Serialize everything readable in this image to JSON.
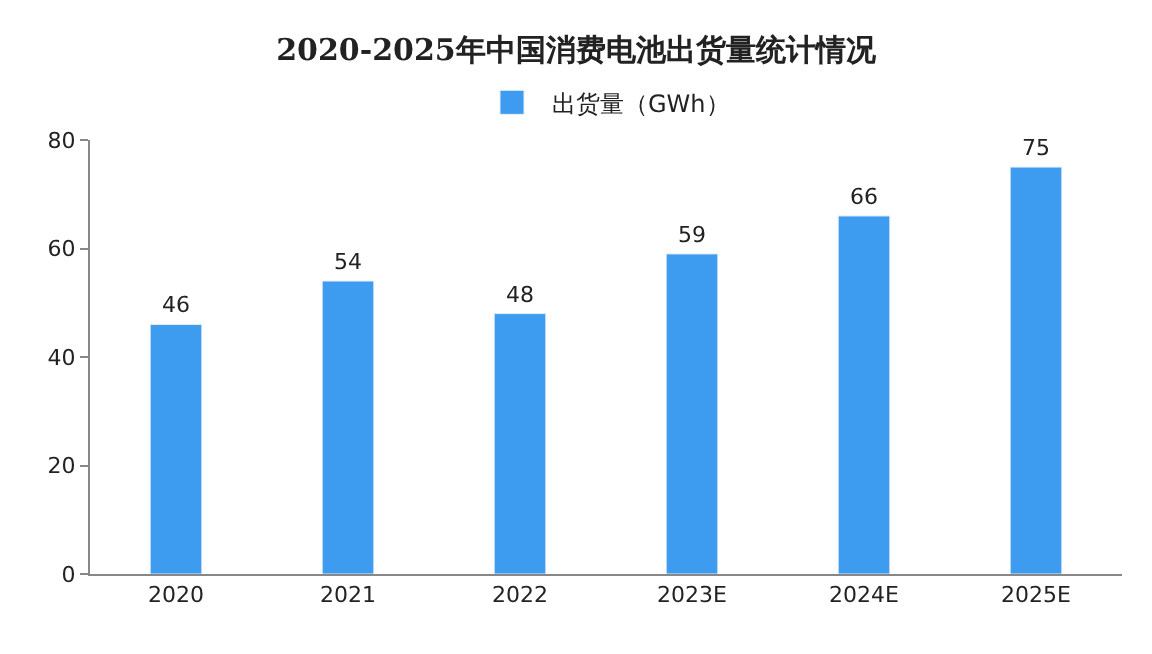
{
  "chart_data": {
    "type": "bar",
    "title": "2020-2025年中国消费电池出货量统计情况",
    "categories": [
      "2020",
      "2021",
      "2022",
      "2023E",
      "2024E",
      "2025E"
    ],
    "series": [
      {
        "name": "出货量（GWh）",
        "color": "#3d9bf0",
        "values": [
          46,
          54,
          48,
          59,
          66,
          75
        ]
      }
    ],
    "ylim": [
      0,
      80
    ],
    "yticks": [
      0,
      20,
      40,
      60,
      80
    ],
    "legend": "top",
    "data_labels": true
  }
}
